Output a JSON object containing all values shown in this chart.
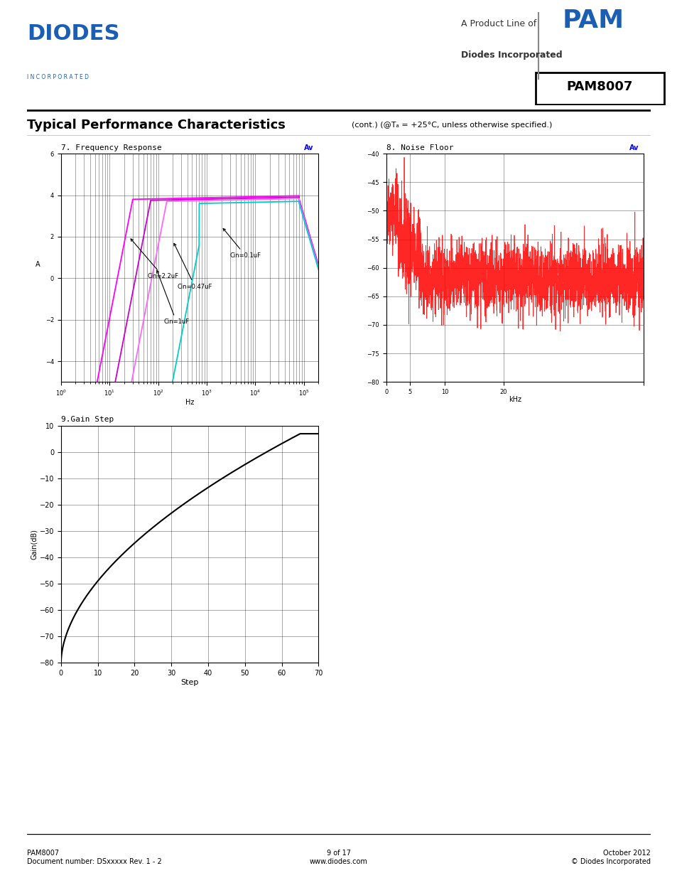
{
  "page_title": "Typical Performance Characteristics",
  "page_subtitle": "(cont.) (@Tₐ = +25°C, unless otherwise specified.)",
  "chip_name": "PAM8007",
  "footer_left": "PAM8007\nDocument number: DSxxxxx Rev. 1 - 2",
  "footer_center": "9 of 17\nwww.diodes.com",
  "footer_right": "October 2012\n© Diodes Incorporated",
  "plot1_title": "7. Frequency Response",
  "plot1_xlabel": "Hz",
  "plot1_ylabel": "A",
  "plot1_curves": [
    {
      "label": "Cin=2.2uF",
      "color": "#ff00ff",
      "lw": 1.3
    },
    {
      "label": "Cin=1uF",
      "color": "#cc00cc",
      "lw": 1.3
    },
    {
      "label": "Cin=0.47uF",
      "color": "#ff66ff",
      "lw": 1.3
    },
    {
      "label": "Cin=0.1uF",
      "color": "#00cccc",
      "lw": 1.3
    }
  ],
  "plot2_title": "8. Noise Floor",
  "plot2_xlabel": "kHz",
  "plot2_curve_color": "#ff0000",
  "plot3_title": "9.Gain Step",
  "plot3_xlabel": "Step",
  "plot3_ylabel": "Gain(dB)",
  "plot3_xlim": [
    0,
    70
  ],
  "plot3_ylim": [
    -80,
    10
  ],
  "plot3_xticks": [
    0,
    10,
    20,
    30,
    40,
    50,
    60,
    70
  ],
  "plot3_yticks": [
    -80,
    -70,
    -60,
    -50,
    -40,
    -30,
    -20,
    -10,
    0,
    10
  ],
  "bg_color": "#ffffff",
  "plot_bg": "#ffffff"
}
